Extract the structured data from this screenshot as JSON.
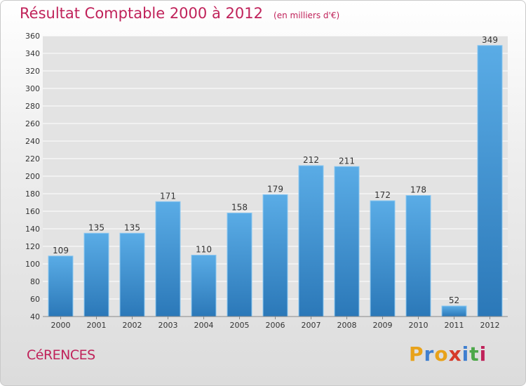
{
  "chart_data": {
    "type": "bar",
    "title": "Résultat Comptable 2000 à 2012",
    "subtitle": "(en milliers d'€)",
    "categories": [
      "2000",
      "2001",
      "2002",
      "2003",
      "2004",
      "2005",
      "2006",
      "2007",
      "2008",
      "2009",
      "2010",
      "2011",
      "2012"
    ],
    "values": [
      109,
      135,
      135,
      171,
      110,
      158,
      179,
      212,
      211,
      172,
      178,
      52,
      349
    ],
    "ylim": [
      40,
      360
    ],
    "yticks": [
      40,
      60,
      80,
      100,
      120,
      140,
      160,
      180,
      200,
      220,
      240,
      260,
      280,
      300,
      320,
      340,
      360
    ],
    "grid": true,
    "xlabel": "",
    "ylabel": ""
  },
  "place_name": "CéRENCES",
  "logo": {
    "letters": [
      "P",
      "r",
      "o",
      "x",
      "i",
      "t",
      "i"
    ],
    "colors": [
      "#e8a21a",
      "#3f7fd0",
      "#e8a21a",
      "#d63a2a",
      "#3f7fd0",
      "#4da84a",
      "#c0225a"
    ]
  },
  "colors": {
    "bar_top": "#5aace6",
    "bar_bottom": "#2b78b8",
    "accent": "#c0225a"
  }
}
